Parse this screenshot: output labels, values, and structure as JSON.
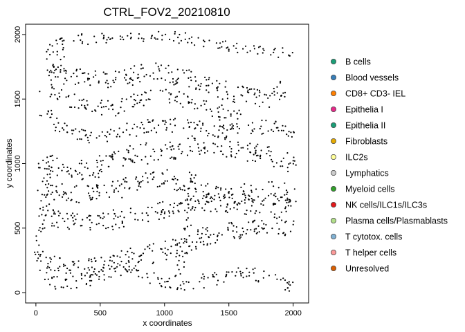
{
  "chart_data": {
    "type": "scatter",
    "title": "CTRL_FOV2_20210810",
    "xlabel": "x coordinates",
    "ylabel": "y coordinates",
    "xlim": [
      -80,
      2120
    ],
    "ylim": [
      -80,
      2080
    ],
    "xticks": [
      0,
      500,
      1000,
      1500,
      2000
    ],
    "yticks": [
      0,
      500,
      1000,
      1500,
      2000
    ],
    "grid": false,
    "legend_position": "right",
    "point_style": "small black dots",
    "legend": [
      {
        "label": "B cells",
        "color": "#1b9e77"
      },
      {
        "label": "Blood vessels",
        "color": "#377eb8"
      },
      {
        "label": "CD8+ CD3- IEL",
        "color": "#ff7f00"
      },
      {
        "label": "Epithelia I",
        "color": "#e7298a"
      },
      {
        "label": "Epithelia II",
        "color": "#1b9e77"
      },
      {
        "label": "Fibroblasts",
        "color": "#e6ab02"
      },
      {
        "label": "ILC2s",
        "color": "#ffff99"
      },
      {
        "label": "Lymphatics",
        "color": "#cccccc"
      },
      {
        "label": "Myeloid cells",
        "color": "#33a02c"
      },
      {
        "label": "NK cells/ILC1s/ILC3s",
        "color": "#e31a1c"
      },
      {
        "label": "Plasma cells/Plasmablasts",
        "color": "#b2df8a"
      },
      {
        "label": "T cytotox. cells",
        "color": "#80b1d3"
      },
      {
        "label": "T helper cells",
        "color": "#fb9a99"
      },
      {
        "label": "Unresolved",
        "color": "#d95f02"
      }
    ],
    "bands": [
      {
        "x": [
          300,
          450,
          550,
          700,
          850,
          1000,
          1150,
          1300,
          1450,
          1650,
          1900,
          2000
        ],
        "y": [
          1980,
          1960,
          1980,
          1990,
          1975,
          1990,
          1975,
          1950,
          1920,
          1890,
          1860,
          1850
        ],
        "width": 80
      },
      {
        "x": [
          100,
          300,
          500,
          750,
          900,
          1100,
          1300,
          1500,
          1700,
          1850,
          1950
        ],
        "y": [
          1720,
          1680,
          1640,
          1680,
          1720,
          1680,
          1620,
          1560,
          1500,
          1520,
          1600
        ],
        "width": 140
      },
      {
        "x": [
          60,
          200,
          400,
          600,
          800,
          950,
          1100,
          1300,
          1450,
          1600
        ],
        "y": [
          1600,
          1520,
          1450,
          1420,
          1500,
          1540,
          1500,
          1440,
          1400,
          1380
        ],
        "width": 110
      },
      {
        "x": [
          60,
          150,
          300,
          500,
          650,
          900,
          1200,
          1500,
          1700,
          1800,
          1920,
          2000
        ],
        "y": [
          1400,
          1300,
          1240,
          1200,
          1240,
          1300,
          1290,
          1270,
          1260,
          1300,
          1280,
          1200
        ],
        "width": 110
      },
      {
        "x": [
          20,
          200,
          400,
          550,
          700,
          850,
          1100,
          1300,
          1500,
          1700,
          1900,
          2020
        ],
        "y": [
          1020,
          970,
          930,
          1000,
          1050,
          1080,
          1100,
          1150,
          1130,
          1080,
          1050,
          1000
        ],
        "width": 150
      },
      {
        "x": [
          50,
          150,
          350,
          600,
          800,
          1000,
          1200,
          1400,
          1600,
          1800,
          2000
        ],
        "y": [
          850,
          780,
          760,
          800,
          850,
          900,
          830,
          750,
          760,
          800,
          770
        ],
        "width": 140
      },
      {
        "x": [
          20,
          200,
          400,
          600,
          800,
          1000,
          1200,
          1400,
          1600,
          1800,
          2030
        ],
        "y": [
          600,
          560,
          540,
          560,
          600,
          650,
          680,
          700,
          680,
          680,
          700
        ],
        "width": 140
      },
      {
        "x": [
          20,
          150,
          300,
          500,
          700,
          900,
          1100,
          1300,
          1500,
          1700,
          1900,
          2000
        ],
        "y": [
          250,
          200,
          180,
          220,
          260,
          300,
          350,
          420,
          480,
          500,
          520,
          500
        ],
        "width": 150
      },
      {
        "x": [
          50,
          250,
          450,
          650,
          850,
          1000,
          1200,
          1400,
          1600,
          1800,
          2000
        ],
        "y": [
          80,
          60,
          120,
          180,
          120,
          60,
          50,
          120,
          150,
          120,
          40
        ],
        "width": 100
      },
      {
        "x": [
          80,
          140,
          200,
          220,
          200,
          120,
          80
        ],
        "y": [
          1650,
          1750,
          1850,
          1950,
          2000,
          1900,
          1800
        ],
        "width": 70
      },
      {
        "x": [
          1100,
          1150,
          1180,
          1200,
          1220
        ],
        "y": [
          100,
          300,
          500,
          700,
          950
        ],
        "width": 60
      },
      {
        "x": [
          0,
          30,
          60,
          90,
          90
        ],
        "y": [
          200,
          400,
          600,
          800,
          1000
        ],
        "width": 60
      }
    ]
  }
}
